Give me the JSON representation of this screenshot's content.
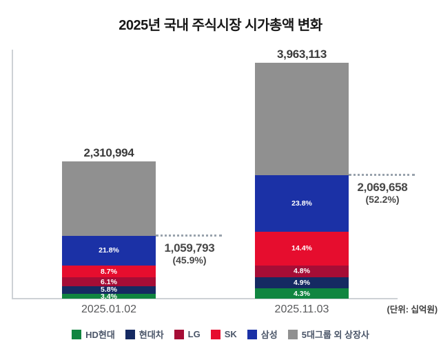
{
  "title": "2025년 국내 주식시장 시가총액 변화",
  "unit_note": "(단위: 십억원)",
  "chart_data": {
    "type": "bar",
    "stacked": true,
    "grid": false,
    "legend_position": "bottom",
    "categories": [
      "2025.01.02",
      "2025.11.03"
    ],
    "totals": [
      2310994,
      3963113
    ],
    "total_labels": [
      "2,310,994",
      "3,963,113"
    ],
    "series": [
      {
        "name": "HD현대",
        "color": "#108540",
        "pct": [
          3.4,
          4.3
        ],
        "show_label": true
      },
      {
        "name": "현대차",
        "color": "#152a62",
        "pct": [
          5.8,
          4.9
        ],
        "show_label": true
      },
      {
        "name": "LG",
        "color": "#a60d36",
        "pct": [
          6.1,
          4.8
        ],
        "show_label": true
      },
      {
        "name": "SK",
        "color": "#e60d2e",
        "pct": [
          8.7,
          14.4
        ],
        "show_label": true
      },
      {
        "name": "삼성",
        "color": "#1b31a6",
        "pct": [
          21.8,
          23.8
        ],
        "show_label": true
      },
      {
        "name": "5대그룹 외 상장사",
        "color": "#909090",
        "pct": [
          54.2,
          47.8
        ],
        "show_label": false
      }
    ],
    "annotations": [
      {
        "value": "1,059,793",
        "share": "(45.9%)"
      },
      {
        "value": "2,069,658",
        "share": "(52.2%)"
      }
    ]
  },
  "colors": {
    "axis_line": "#cdd1d5",
    "dotted_line": "#98a2ac",
    "title_text": "#171717",
    "annotation_text": "#474747",
    "category_text": "#58595b",
    "legend_text": "#4a5568",
    "segment_label_text": "#ffffff"
  }
}
